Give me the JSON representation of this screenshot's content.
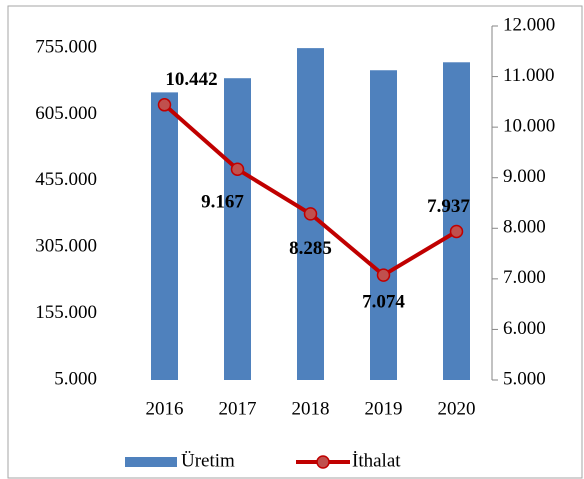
{
  "chart_data": {
    "type": "bar_line",
    "categories": [
      "2016",
      "2017",
      "2018",
      "2019",
      "2020"
    ],
    "series": [
      {
        "name": "Üretim",
        "type": "bar",
        "color": "#4f81bd",
        "values": [
          655000,
          687000,
          755000,
          705000,
          723000
        ]
      },
      {
        "name": "İthalat",
        "type": "line",
        "axis": "y2",
        "color": "#c00000",
        "marker_color": "#c0504d",
        "values": [
          10442,
          9167,
          8285,
          7074,
          7937
        ],
        "value_labels": [
          "10.442",
          "9.167",
          "8.285",
          "7.074",
          "7.937"
        ]
      }
    ],
    "ylim": [
      5000,
      805000
    ],
    "yticks": [
      {
        "value": 5000,
        "label": "5.000"
      },
      {
        "value": 155000,
        "label": "155.000"
      },
      {
        "value": 305000,
        "label": "305.000"
      },
      {
        "value": 455000,
        "label": "455.000"
      },
      {
        "value": 605000,
        "label": "605.000"
      },
      {
        "value": 755000,
        "label": "755.000"
      }
    ],
    "y2lim": [
      5000,
      12000
    ],
    "y2ticks": [
      {
        "value": 5000,
        "label": "5.000"
      },
      {
        "value": 6000,
        "label": "6.000"
      },
      {
        "value": 7000,
        "label": "7.000"
      },
      {
        "value": 8000,
        "label": "8.000"
      },
      {
        "value": 9000,
        "label": "9.000"
      },
      {
        "value": 10000,
        "label": "10.000"
      },
      {
        "value": 11000,
        "label": "11.000"
      },
      {
        "value": 12000,
        "label": "12.000"
      }
    ],
    "legend": "bottom"
  }
}
